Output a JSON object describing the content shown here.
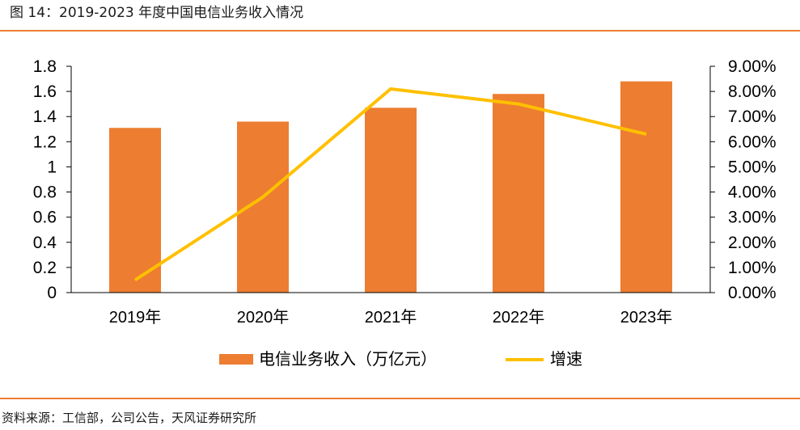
{
  "header": {
    "title": "图 14：2019-2023 年度中国电信业务收入情况"
  },
  "footer": {
    "source": "资料来源：工信部，公司公告，天风证券研究所"
  },
  "colors": {
    "accent": "#ED7D31",
    "bar": "#ED7D31",
    "line": "#FFC000"
  },
  "chart_data": {
    "type": "bar",
    "title": "",
    "categories": [
      "2019年",
      "2020年",
      "2021年",
      "2022年",
      "2023年"
    ],
    "series": [
      {
        "name": "电信业务收入（万亿元）",
        "type": "bar",
        "axis": "left",
        "values": [
          1.31,
          1.36,
          1.47,
          1.58,
          1.68
        ]
      },
      {
        "name": "增速",
        "type": "line",
        "axis": "right",
        "values": [
          0.005,
          0.038,
          0.081,
          0.075,
          0.063
        ]
      }
    ],
    "y_left": {
      "min": 0,
      "max": 1.8,
      "ticks": [
        "0",
        "0.2",
        "0.4",
        "0.6",
        "0.8",
        "1",
        "1.2",
        "1.4",
        "1.6",
        "1.8"
      ]
    },
    "y_right": {
      "min": 0,
      "max": 0.09,
      "ticks": [
        "0.00%",
        "1.00%",
        "2.00%",
        "3.00%",
        "4.00%",
        "5.00%",
        "6.00%",
        "7.00%",
        "8.00%",
        "9.00%"
      ]
    },
    "legend": {
      "position": "bottom"
    },
    "grid": false
  }
}
